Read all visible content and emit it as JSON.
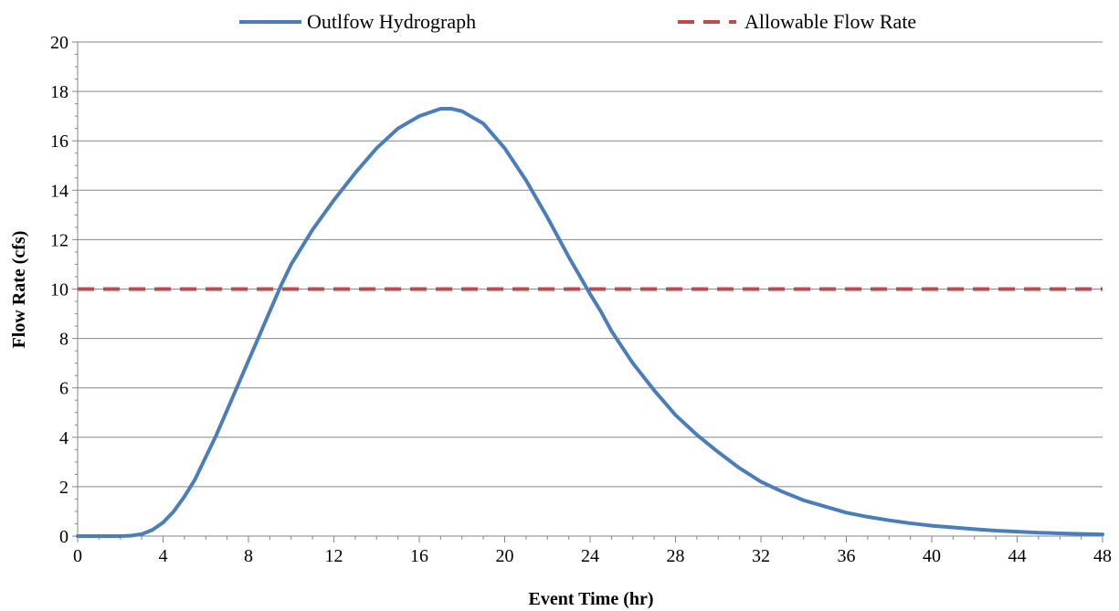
{
  "chart_data": {
    "type": "line",
    "title": "",
    "xlabel": "Event Time (hr)",
    "ylabel": "Flow Rate (cfs)",
    "xlim": [
      0,
      48
    ],
    "ylim": [
      0,
      20
    ],
    "xticks": [
      "0",
      "4",
      "8",
      "12",
      "16",
      "20",
      "24",
      "28",
      "32",
      "36",
      "40",
      "44",
      "48"
    ],
    "yticks": [
      "0",
      "2",
      "4",
      "6",
      "8",
      "10",
      "12",
      "14",
      "16",
      "18",
      "20"
    ],
    "grid": "horizontal",
    "legend_position": "top",
    "series": [
      {
        "name": "Outlfow Hydrograph",
        "color": "#4a7ebb",
        "style": "solid",
        "x": [
          0,
          1,
          2,
          2.5,
          3,
          3.5,
          4,
          4.5,
          5,
          5.5,
          6,
          6.5,
          7,
          7.5,
          8,
          8.5,
          9,
          9.5,
          10,
          11,
          12,
          13,
          14,
          15,
          16,
          17,
          17.5,
          18,
          19,
          20,
          21,
          22,
          23,
          24,
          24.5,
          25,
          26,
          27,
          28,
          29,
          30,
          31,
          32,
          33,
          34,
          35,
          36,
          37,
          38,
          39,
          40,
          41,
          42,
          43,
          44,
          45,
          46,
          47,
          48
        ],
        "y": [
          0,
          0,
          0,
          0.02,
          0.08,
          0.25,
          0.55,
          1.0,
          1.6,
          2.3,
          3.2,
          4.1,
          5.1,
          6.1,
          7.1,
          8.1,
          9.1,
          10.1,
          11.0,
          12.4,
          13.6,
          14.7,
          15.7,
          16.5,
          17.0,
          17.3,
          17.3,
          17.2,
          16.7,
          15.7,
          14.4,
          12.9,
          11.3,
          9.8,
          9.1,
          8.3,
          7.0,
          5.9,
          4.9,
          4.1,
          3.4,
          2.75,
          2.2,
          1.8,
          1.45,
          1.2,
          0.95,
          0.78,
          0.64,
          0.52,
          0.42,
          0.35,
          0.28,
          0.22,
          0.18,
          0.14,
          0.11,
          0.09,
          0.07
        ]
      },
      {
        "name": "Allowable Flow Rate",
        "color": "#be4b48",
        "style": "dashed",
        "x": [
          0,
          48
        ],
        "y": [
          10,
          10
        ]
      }
    ]
  }
}
